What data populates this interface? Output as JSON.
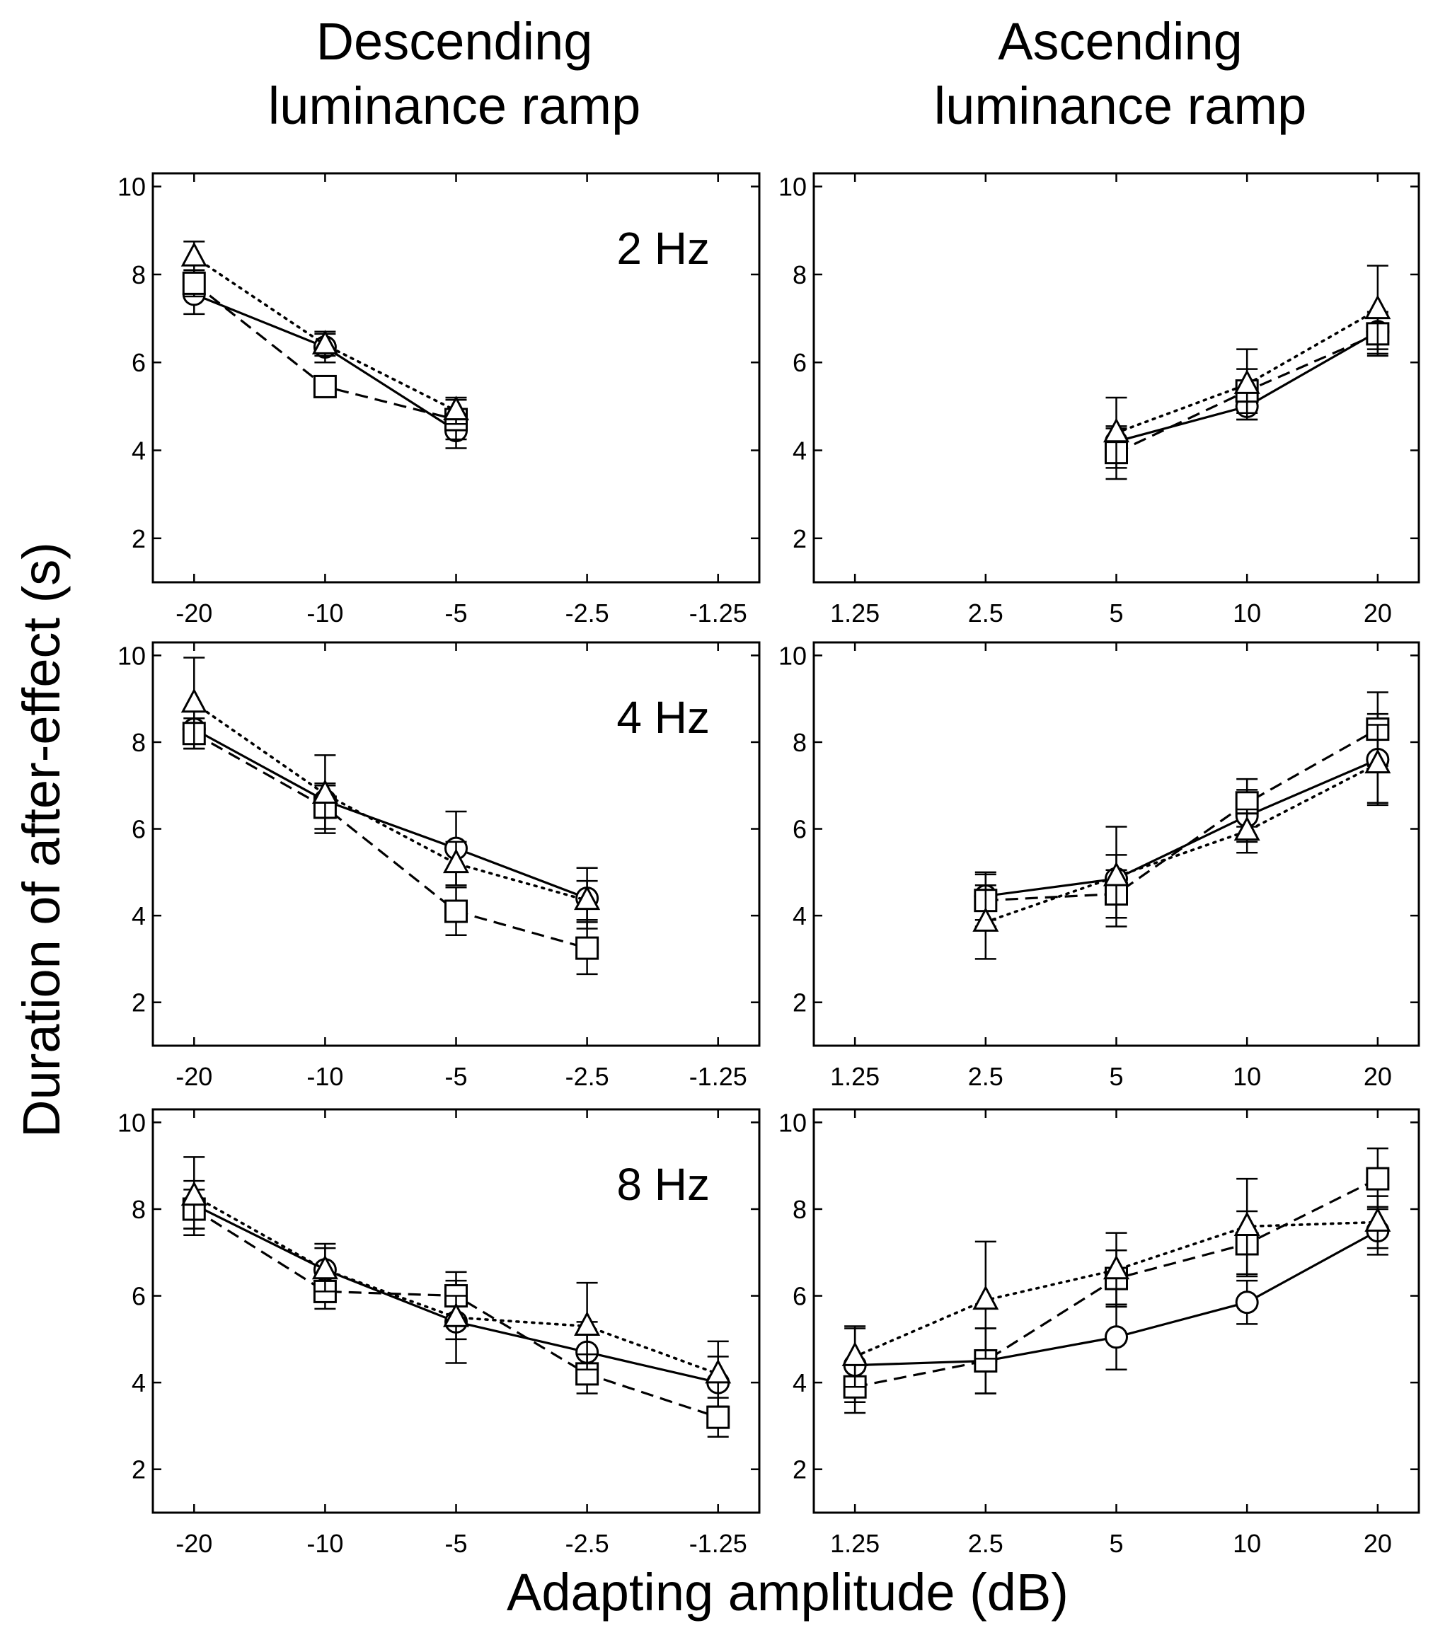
{
  "figure": {
    "column_titles": [
      [
        "Descending",
        "luminance ramp"
      ],
      [
        "Ascending",
        "luminance ramp"
      ]
    ],
    "ylabel": "Duration of after-effect (s)",
    "xlabel": "Adapting amplitude (dB)",
    "frequencies": [
      "2 Hz",
      "4 Hz",
      "8 Hz"
    ]
  },
  "chart_data": [
    {
      "type": "line",
      "panel": "descending-2hz",
      "label": "2 Hz",
      "categories": [
        "-20",
        "-10",
        "-5",
        "-2.5",
        "-1.25"
      ],
      "ylim": [
        1,
        10.3
      ],
      "yticks": [
        2,
        4,
        6,
        8,
        10
      ],
      "series": [
        {
          "marker": "circle",
          "style": "solid",
          "y": [
            7.55,
            6.35,
            4.45,
            null,
            null
          ],
          "err": [
            0.45,
            0.35,
            0.4,
            null,
            null
          ]
        },
        {
          "marker": "square",
          "style": "dashed",
          "y": [
            7.8,
            5.45,
            4.7,
            null,
            null
          ],
          "err": [
            0.3,
            0.2,
            0.45,
            null,
            null
          ]
        },
        {
          "marker": "triangle",
          "style": "dotted",
          "y": [
            8.4,
            6.4,
            4.9,
            null,
            null
          ],
          "err": [
            0.35,
            0.25,
            0.3,
            null,
            null
          ]
        }
      ]
    },
    {
      "type": "line",
      "panel": "ascending-2hz",
      "label": "",
      "categories": [
        "1.25",
        "2.5",
        "5",
        "10",
        "20"
      ],
      "ylim": [
        1,
        10.3
      ],
      "yticks": [
        2,
        4,
        6,
        8,
        10
      ],
      "series": [
        {
          "marker": "circle",
          "style": "solid",
          "y": [
            null,
            null,
            4.2,
            5.0,
            6.7
          ],
          "err": [
            null,
            null,
            0.3,
            0.3,
            0.4
          ]
        },
        {
          "marker": "square",
          "style": "dashed",
          "y": [
            null,
            null,
            3.95,
            5.35,
            6.65
          ],
          "err": [
            null,
            null,
            0.6,
            0.5,
            0.5
          ]
        },
        {
          "marker": "triangle",
          "style": "dotted",
          "y": [
            null,
            null,
            4.4,
            5.5,
            7.2
          ],
          "err": [
            null,
            null,
            0.8,
            0.8,
            1.0
          ]
        }
      ]
    },
    {
      "type": "line",
      "panel": "descending-4hz",
      "label": "4 Hz",
      "categories": [
        "-20",
        "-10",
        "-5",
        "-2.5",
        "-1.25"
      ],
      "ylim": [
        1,
        10.3
      ],
      "yticks": [
        2,
        4,
        6,
        8,
        10
      ],
      "series": [
        {
          "marker": "circle",
          "style": "solid",
          "y": [
            8.3,
            6.65,
            5.55,
            4.4,
            null
          ],
          "err": [
            0.45,
            0.4,
            0.85,
            0.7,
            null
          ]
        },
        {
          "marker": "square",
          "style": "dashed",
          "y": [
            8.2,
            6.5,
            4.1,
            3.25,
            null
          ],
          "err": [
            0.35,
            0.5,
            0.55,
            0.6,
            null
          ]
        },
        {
          "marker": "triangle",
          "style": "dotted",
          "y": [
            8.9,
            6.8,
            5.2,
            4.35,
            null
          ],
          "err": [
            1.05,
            0.9,
            0.5,
            0.45,
            null
          ]
        }
      ]
    },
    {
      "type": "line",
      "panel": "ascending-4hz",
      "label": "",
      "categories": [
        "1.25",
        "2.5",
        "5",
        "10",
        "20"
      ],
      "ylim": [
        1,
        10.3
      ],
      "yticks": [
        2,
        4,
        6,
        8,
        10
      ],
      "series": [
        {
          "marker": "circle",
          "style": "solid",
          "y": [
            null,
            4.45,
            4.85,
            6.3,
            7.6
          ],
          "err": [
            null,
            0.55,
            0.55,
            0.6,
            1.05
          ]
        },
        {
          "marker": "square",
          "style": "dashed",
          "y": [
            null,
            4.35,
            4.5,
            6.6,
            8.3
          ],
          "err": [
            null,
            0.6,
            0.55,
            0.55,
            0.85
          ]
        },
        {
          "marker": "triangle",
          "style": "dotted",
          "y": [
            null,
            3.85,
            4.9,
            5.95,
            7.5
          ],
          "err": [
            null,
            0.85,
            1.15,
            0.5,
            0.9
          ]
        }
      ]
    },
    {
      "type": "line",
      "panel": "descending-8hz",
      "label": "8 Hz",
      "categories": [
        "-20",
        "-10",
        "-5",
        "-2.5",
        "-1.25"
      ],
      "ylim": [
        1,
        10.3
      ],
      "yticks": [
        2,
        4,
        6,
        8,
        10
      ],
      "series": [
        {
          "marker": "circle",
          "style": "solid",
          "y": [
            8.1,
            6.6,
            5.4,
            4.7,
            4.0
          ],
          "err": [
            0.55,
            0.6,
            0.95,
            0.7,
            0.6
          ]
        },
        {
          "marker": "square",
          "style": "dashed",
          "y": [
            8.0,
            6.1,
            6.0,
            4.2,
            3.2
          ],
          "err": [
            0.45,
            0.4,
            0.55,
            0.45,
            0.45
          ]
        },
        {
          "marker": "triangle",
          "style": "dotted",
          "y": [
            8.3,
            6.6,
            5.5,
            5.3,
            4.2
          ],
          "err": [
            0.9,
            0.5,
            0.5,
            1.0,
            0.75
          ]
        }
      ]
    },
    {
      "type": "line",
      "panel": "ascending-8hz",
      "label": "",
      "categories": [
        "1.25",
        "2.5",
        "5",
        "10",
        "20"
      ],
      "ylim": [
        1,
        10.3
      ],
      "yticks": [
        2,
        4,
        6,
        8,
        10
      ],
      "series": [
        {
          "marker": "circle",
          "style": "solid",
          "y": [
            4.4,
            4.5,
            5.05,
            5.85,
            7.5
          ],
          "err": [
            0.85,
            0.75,
            0.75,
            0.5,
            0.55
          ]
        },
        {
          "marker": "square",
          "style": "dashed",
          "y": [
            3.9,
            4.5,
            6.4,
            7.2,
            8.7
          ],
          "err": [
            0.6,
            0.75,
            0.65,
            0.75,
            0.7
          ]
        },
        {
          "marker": "triangle",
          "style": "dotted",
          "y": [
            4.6,
            5.9,
            6.6,
            7.6,
            7.7
          ],
          "err": [
            0.7,
            1.35,
            0.85,
            1.1,
            0.6
          ]
        }
      ]
    }
  ]
}
